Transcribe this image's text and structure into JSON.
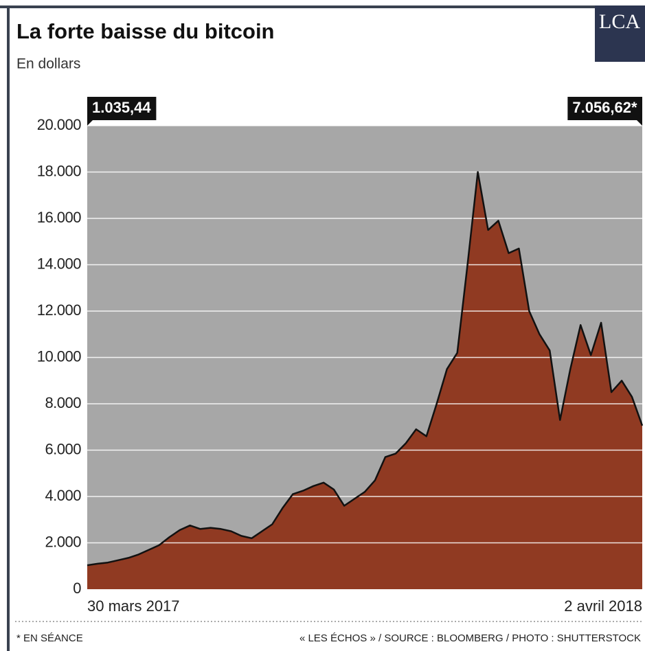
{
  "chart_data": {
    "type": "area",
    "title": "La forte baisse du bitcoin",
    "subtitle": "En dollars",
    "logo": "LCA",
    "footnote": "* EN SÉANCE",
    "source": "« LES ÉCHOS » / SOURCE : BLOOMBERG / PHOTO : SHUTTERSTOCK",
    "categories": [
      "30 mars 2017",
      null,
      null,
      null,
      null,
      null,
      null,
      null,
      null,
      null,
      null,
      null,
      null,
      null,
      null,
      null,
      null,
      null,
      null,
      null,
      null,
      null,
      null,
      null,
      null,
      null,
      null,
      null,
      null,
      null,
      null,
      null,
      null,
      null,
      null,
      null,
      null,
      null,
      null,
      null,
      null,
      null,
      null,
      null,
      null,
      null,
      null,
      null,
      null,
      null,
      null,
      null,
      null,
      null,
      "2 avril 2018"
    ],
    "values": [
      1035.44,
      1100,
      1150,
      1250,
      1350,
      1500,
      1700,
      1900,
      2250,
      2550,
      2750,
      2600,
      2650,
      2600,
      2500,
      2300,
      2200,
      2500,
      2800,
      3500,
      4100,
      4250,
      4450,
      4600,
      4300,
      3600,
      3900,
      4200,
      4700,
      5700,
      5850,
      6300,
      6900,
      6600,
      8000,
      9500,
      10200,
      14000,
      18000,
      15500,
      15900,
      14500,
      14700,
      12000,
      11000,
      10300,
      7300,
      9500,
      11400,
      10100,
      11500,
      8500,
      9000,
      8300,
      7056.62
    ],
    "value_labels": [
      "1.035,44",
      null,
      null,
      null,
      null,
      null,
      null,
      null,
      null,
      null,
      null,
      null,
      null,
      null,
      null,
      null,
      null,
      null,
      null,
      null,
      null,
      null,
      null,
      null,
      null,
      null,
      null,
      null,
      null,
      null,
      null,
      null,
      null,
      null,
      null,
      null,
      null,
      null,
      null,
      null,
      null,
      null,
      null,
      null,
      null,
      null,
      null,
      null,
      null,
      null,
      null,
      null,
      null,
      null,
      "7.056,62*"
    ],
    "color": "#111111",
    "fill": "#8e2f14",
    "ylim": [
      0,
      20000
    ],
    "yticks": [
      0,
      {
        "value": 2000,
        "label": "2.000"
      },
      {
        "value": 4000,
        "label": "4.000"
      },
      {
        "value": 6000,
        "label": "6.000"
      },
      {
        "value": 8000,
        "label": "8.000"
      },
      {
        "value": 10000,
        "label": "10.000"
      },
      {
        "value": 12000,
        "label": "12.000"
      },
      {
        "value": 14000,
        "label": "14.000"
      },
      {
        "value": 16000,
        "label": "16.000"
      },
      {
        "value": 18000,
        "label": "18.000"
      },
      {
        "value": 20000,
        "label": "20.000"
      }
    ],
    "grid": true
  }
}
